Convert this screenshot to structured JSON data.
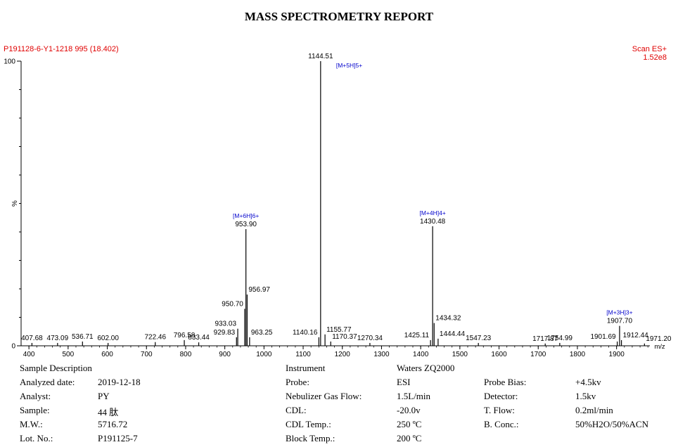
{
  "report": {
    "title": "MASS SPECTROMETRY REPORT",
    "sample_id": "P191128-6-Y1-1218 995 (18.402)",
    "scan_mode": "Scan ES+",
    "intensity": "1.52e8"
  },
  "chart_data": {
    "type": "bar",
    "xlabel": "m/z",
    "ylabel": "%",
    "xlim": [
      380,
      1985
    ],
    "ylim": [
      0,
      100
    ],
    "x_ticks": [
      400,
      500,
      600,
      700,
      800,
      900,
      1000,
      1100,
      1200,
      1300,
      1400,
      1500,
      1600,
      1700,
      1800,
      1900
    ],
    "y_ticks": [
      0,
      100
    ],
    "y_tick_labels": [
      "0",
      "100"
    ],
    "grid": false,
    "peaks": [
      {
        "mz": 407.68,
        "rel": 1.0,
        "label": "407.68"
      },
      {
        "mz": 473.09,
        "rel": 1.0,
        "label": "473.09"
      },
      {
        "mz": 536.71,
        "rel": 1.5,
        "label": "536.71"
      },
      {
        "mz": 602.0,
        "rel": 1.0,
        "label": "602.00"
      },
      {
        "mz": 722.46,
        "rel": 1.3,
        "label": "722.46"
      },
      {
        "mz": 796.58,
        "rel": 2.0,
        "label": "796.58"
      },
      {
        "mz": 833.44,
        "rel": 1.2,
        "label": "833.44"
      },
      {
        "mz": 929.83,
        "rel": 3.0,
        "label": "929.83"
      },
      {
        "mz": 933.03,
        "rel": 6.0,
        "label": "933.03"
      },
      {
        "mz": 950.7,
        "rel": 13.0,
        "label": "950.70"
      },
      {
        "mz": 953.9,
        "rel": 41.0,
        "label": "953.90"
      },
      {
        "mz": 956.97,
        "rel": 18.0,
        "label": "956.97"
      },
      {
        "mz": 963.25,
        "rel": 3.0,
        "label": "963.25"
      },
      {
        "mz": 1140.16,
        "rel": 3.0,
        "label": "1140.16"
      },
      {
        "mz": 1144.51,
        "rel": 100.0,
        "label": "1144.51"
      },
      {
        "mz": 1155.77,
        "rel": 4.0,
        "label": "1155.77"
      },
      {
        "mz": 1170.37,
        "rel": 1.5,
        "label": "1170.37"
      },
      {
        "mz": 1270.34,
        "rel": 1.0,
        "label": "1270.34"
      },
      {
        "mz": 1425.11,
        "rel": 2.0,
        "label": "1425.11"
      },
      {
        "mz": 1430.48,
        "rel": 42.0,
        "label": "1430.48"
      },
      {
        "mz": 1434.32,
        "rel": 8.0,
        "label": "1434.32"
      },
      {
        "mz": 1444.44,
        "rel": 2.5,
        "label": "1444.44"
      },
      {
        "mz": 1547.23,
        "rel": 1.0,
        "label": "1547.23"
      },
      {
        "mz": 1717.87,
        "rel": 0.8,
        "label": "1717.87"
      },
      {
        "mz": 1754.99,
        "rel": 1.0,
        "label": "1754.99"
      },
      {
        "mz": 1901.69,
        "rel": 1.5,
        "label": "1901.69"
      },
      {
        "mz": 1907.7,
        "rel": 7.0,
        "label": "1907.70"
      },
      {
        "mz": 1912.44,
        "rel": 2.0,
        "label": "1912.44"
      },
      {
        "mz": 1971.2,
        "rel": 0.8,
        "label": "1971.20"
      }
    ],
    "annotations": [
      {
        "text": "[M+5H]5+",
        "mz": 1144.51,
        "rel": 100.0
      },
      {
        "text": "[M+6H]6+",
        "mz": 953.9,
        "rel": 41.0
      },
      {
        "text": "[M+4H]4+",
        "mz": 1430.48,
        "rel": 42.0
      },
      {
        "text": "[M+3H]3+",
        "mz": 1907.7,
        "rel": 7.0
      }
    ],
    "colors": {
      "peaks": "#000000",
      "annotations": "#0000cc",
      "header": "#e00000"
    }
  },
  "info": {
    "col1": [
      {
        "key": "Sample Description",
        "value": ""
      },
      {
        "key": "Analyzed date:",
        "value": "2019-12-18"
      },
      {
        "key": "Analyst:",
        "value": "PY"
      },
      {
        "key": "Sample:",
        "value": "44 肽"
      },
      {
        "key": "M.W.:",
        "value": "5716.72"
      },
      {
        "key": "Lot. No.:",
        "value": "P191125-7"
      }
    ],
    "col2": [
      {
        "key": "Instrument",
        "value": "Waters ZQ2000"
      },
      {
        "key": "Probe:",
        "value": "ESI"
      },
      {
        "key": "Nebulizer Gas Flow:",
        "value": "1.5L/min"
      },
      {
        "key": "CDL:",
        "value": "-20.0v"
      },
      {
        "key": "CDL Temp.:",
        "value": "250 ºC"
      },
      {
        "key": "Block Temp.:",
        "value": "200 ºC"
      }
    ],
    "col3": [
      {
        "key": "Probe Bias:",
        "value": "+4.5kv"
      },
      {
        "key": "Detector:",
        "value": "1.5kv"
      },
      {
        "key": "T. Flow:",
        "value": "0.2ml/min"
      },
      {
        "key": "B. Conc.:",
        "value": "50%H2O/50%ACN"
      }
    ]
  }
}
